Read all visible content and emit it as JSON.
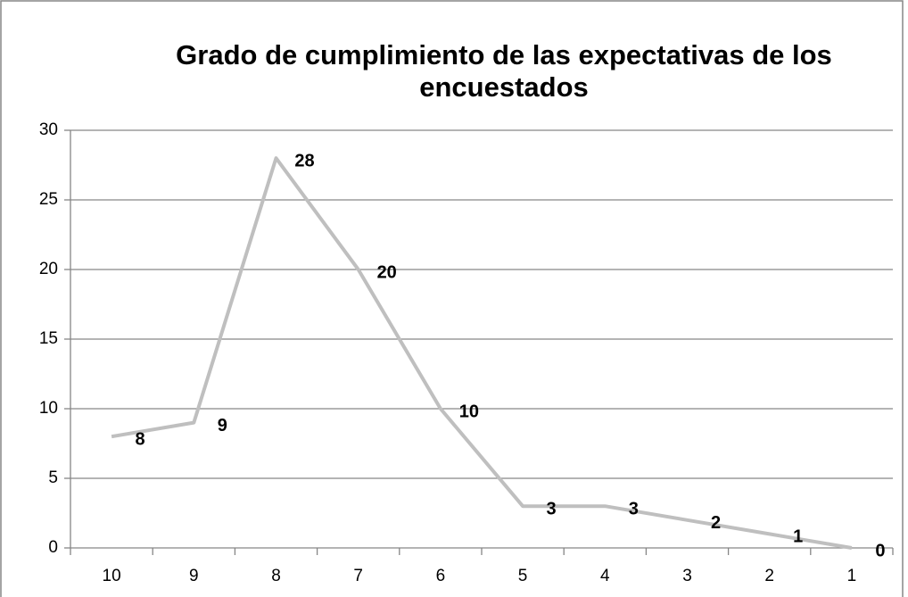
{
  "chart_data": {
    "type": "line",
    "title": "Grado de cumplimiento de las expectativas de los encuestados",
    "categories": [
      "10",
      "9",
      "8",
      "7",
      "6",
      "5",
      "4",
      "3",
      "2",
      "1"
    ],
    "values": [
      8,
      9,
      28,
      20,
      10,
      3,
      3,
      2,
      1,
      0
    ],
    "color": "#bfbfbf",
    "ylim": [
      0,
      30
    ],
    "yticks": [
      0,
      5,
      10,
      15,
      20,
      25,
      30
    ],
    "grid": true
  }
}
